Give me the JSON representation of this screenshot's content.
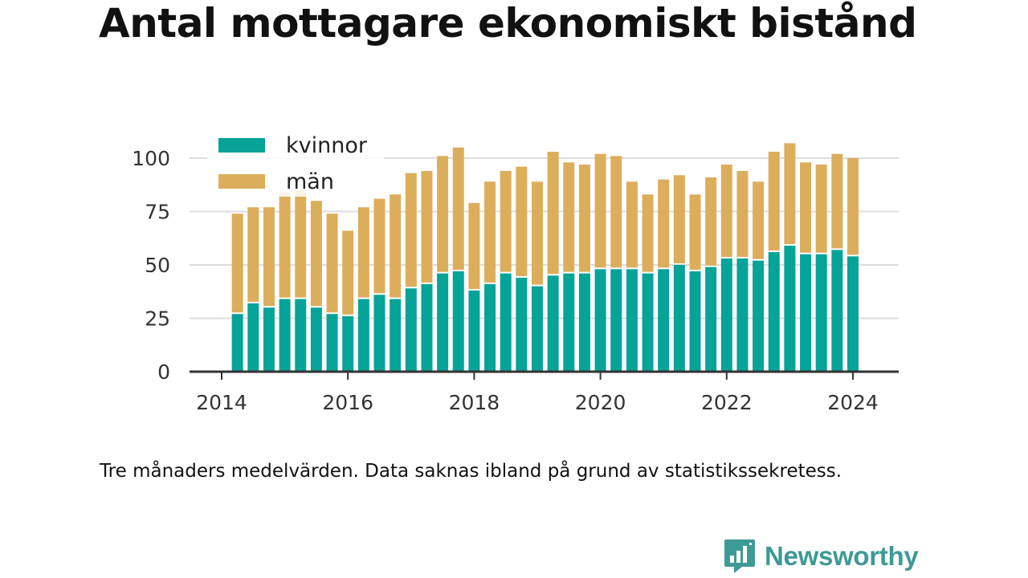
{
  "title": "Antal mottagare ekonomiskt bistånd",
  "note": "Tre månaders medelvärden. Data saknas ibland på grund av statistikssekretess.",
  "brand": "Newsworthy",
  "colors": {
    "kvinnor": "#05a398",
    "man": "#dcae5b",
    "axis": "#333333",
    "grid": "#dddddd"
  },
  "chart_data": {
    "type": "bar",
    "stacked": true,
    "x_ticks": [
      "2014",
      "2016",
      "2018",
      "2020",
      "2022",
      "2024"
    ],
    "y_ticks": [
      "0",
      "25",
      "50",
      "75",
      "100"
    ],
    "ylim": [
      0,
      110
    ],
    "xlim": [
      2014.0,
      2024.75
    ],
    "grid": "horizontal",
    "legend_position": "top-left",
    "x": [
      2014.25,
      2014.5,
      2014.75,
      2015.0,
      2015.25,
      2015.5,
      2015.75,
      2016.0,
      2016.25,
      2016.5,
      2016.75,
      2017.0,
      2017.25,
      2017.5,
      2017.75,
      2018.0,
      2018.25,
      2018.5,
      2018.75,
      2019.0,
      2019.25,
      2019.5,
      2019.75,
      2020.0,
      2020.25,
      2020.5,
      2020.75,
      2021.0,
      2021.25,
      2021.5,
      2021.75,
      2022.0,
      2022.25,
      2022.5,
      2022.75,
      2023.0,
      2023.25,
      2023.5,
      2023.75,
      2024.0
    ],
    "series": [
      {
        "name": "kvinnor",
        "values": [
          27,
          32,
          30,
          34,
          34,
          30,
          27,
          26,
          34,
          36,
          34,
          39,
          41,
          46,
          47,
          38,
          41,
          46,
          44,
          40,
          45,
          46,
          46,
          48,
          48,
          48,
          46,
          48,
          50,
          47,
          49,
          53,
          53,
          52,
          56,
          59,
          55,
          55,
          57,
          54
        ]
      },
      {
        "name": "män",
        "values": [
          47,
          45,
          47,
          50,
          51,
          50,
          47,
          40,
          43,
          45,
          49,
          54,
          53,
          55,
          58,
          41,
          48,
          48,
          52,
          49,
          58,
          52,
          51,
          54,
          53,
          41,
          37,
          42,
          42,
          36,
          42,
          44,
          41,
          37,
          47,
          48,
          43,
          42,
          45,
          46
        ]
      }
    ]
  }
}
